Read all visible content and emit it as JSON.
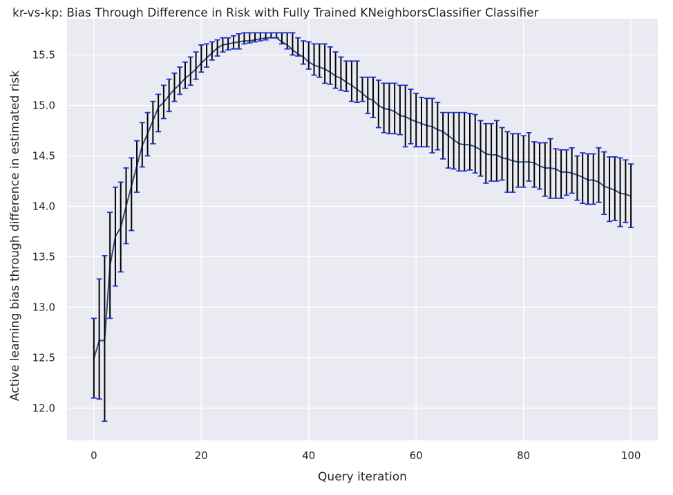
{
  "chart_data": {
    "type": "line",
    "title": "kr-vs-kp: Bias Through Difference in Risk with Fully Trained KNeighborsClassifier Classifier",
    "xlabel": "Query iteration",
    "ylabel": "Active learning bias through difference in estimated risk",
    "xlim": [
      -5,
      105
    ],
    "ylim": [
      11.68,
      15.86
    ],
    "x_ticks": [
      0,
      20,
      40,
      60,
      80,
      100
    ],
    "y_ticks": [
      12.0,
      12.5,
      13.0,
      13.5,
      14.0,
      14.5,
      15.0,
      15.5
    ],
    "grid": true,
    "x": [
      0,
      1,
      2,
      3,
      4,
      5,
      6,
      7,
      8,
      9,
      10,
      11,
      12,
      13,
      14,
      15,
      16,
      17,
      18,
      19,
      20,
      21,
      22,
      23,
      24,
      25,
      26,
      27,
      28,
      29,
      30,
      31,
      32,
      33,
      34,
      35,
      36,
      37,
      38,
      39,
      40,
      41,
      42,
      43,
      44,
      45,
      46,
      47,
      48,
      49,
      50,
      51,
      52,
      53,
      54,
      55,
      56,
      57,
      58,
      59,
      60,
      61,
      62,
      63,
      64,
      65,
      66,
      67,
      68,
      69,
      70,
      71,
      72,
      73,
      74,
      75,
      76,
      77,
      78,
      79,
      80,
      81,
      82,
      83,
      84,
      85,
      86,
      87,
      88,
      89,
      90,
      91,
      92,
      93,
      94,
      95,
      96,
      97,
      98,
      99,
      100
    ],
    "series": [
      {
        "values": [
          12.49,
          12.67,
          12.67,
          13.41,
          13.7,
          13.79,
          14.0,
          14.2,
          14.4,
          14.6,
          14.72,
          14.85,
          14.98,
          15.03,
          15.1,
          15.16,
          15.21,
          15.27,
          15.31,
          15.36,
          15.42,
          15.47,
          15.52,
          15.57,
          15.6,
          15.61,
          15.62,
          15.63,
          15.64,
          15.64,
          15.65,
          15.66,
          15.67,
          15.67,
          15.67,
          15.63,
          15.6,
          15.55,
          15.51,
          15.48,
          15.43,
          15.4,
          15.38,
          15.36,
          15.33,
          15.29,
          15.27,
          15.23,
          15.2,
          15.16,
          15.12,
          15.07,
          15.05,
          15.0,
          14.97,
          14.96,
          14.94,
          14.9,
          14.89,
          14.86,
          14.84,
          14.82,
          14.8,
          14.79,
          14.76,
          14.74,
          14.7,
          14.66,
          14.62,
          14.61,
          14.61,
          14.59,
          14.56,
          14.52,
          14.51,
          14.51,
          14.48,
          14.47,
          14.45,
          14.44,
          14.44,
          14.44,
          14.43,
          14.4,
          14.38,
          14.38,
          14.37,
          14.34,
          14.34,
          14.33,
          14.31,
          14.29,
          14.26,
          14.26,
          14.24,
          14.2,
          14.18,
          14.16,
          14.13,
          14.12,
          14.1
        ],
        "lower": [
          12.1,
          12.09,
          11.87,
          12.89,
          13.21,
          13.35,
          13.63,
          13.76,
          14.14,
          14.39,
          14.5,
          14.62,
          14.74,
          14.87,
          14.94,
          15.04,
          15.11,
          15.17,
          15.2,
          15.26,
          15.33,
          15.38,
          15.45,
          15.49,
          15.53,
          15.55,
          15.56,
          15.56,
          15.61,
          15.62,
          15.63,
          15.64,
          15.65,
          15.67,
          15.67,
          15.61,
          15.56,
          15.5,
          15.49,
          15.41,
          15.36,
          15.3,
          15.28,
          15.22,
          15.21,
          15.17,
          15.15,
          15.14,
          15.04,
          15.03,
          15.04,
          14.92,
          14.88,
          14.78,
          14.73,
          14.72,
          14.72,
          14.71,
          14.59,
          14.62,
          14.59,
          14.59,
          14.59,
          14.53,
          14.56,
          14.47,
          14.38,
          14.37,
          14.35,
          14.35,
          14.36,
          14.33,
          14.3,
          14.23,
          14.25,
          14.25,
          14.26,
          14.14,
          14.14,
          14.19,
          14.19,
          14.25,
          14.19,
          14.17,
          14.1,
          14.08,
          14.08,
          14.08,
          14.11,
          14.13,
          14.06,
          14.03,
          14.02,
          14.02,
          14.04,
          13.92,
          13.85,
          13.86,
          13.8,
          13.84,
          13.79
        ],
        "upper": [
          12.89,
          13.28,
          13.51,
          13.94,
          14.19,
          14.24,
          14.38,
          14.48,
          14.65,
          14.83,
          14.93,
          15.04,
          15.11,
          15.2,
          15.26,
          15.32,
          15.38,
          15.43,
          15.48,
          15.53,
          15.6,
          15.61,
          15.63,
          15.65,
          15.67,
          15.67,
          15.69,
          15.71,
          15.72,
          15.72,
          15.72,
          15.72,
          15.72,
          15.72,
          15.72,
          15.72,
          15.72,
          15.72,
          15.67,
          15.64,
          15.63,
          15.61,
          15.61,
          15.61,
          15.58,
          15.53,
          15.48,
          15.44,
          15.44,
          15.44,
          15.28,
          15.28,
          15.28,
          15.25,
          15.22,
          15.22,
          15.22,
          15.2,
          15.2,
          15.16,
          15.12,
          15.08,
          15.07,
          15.07,
          15.03,
          14.93,
          14.93,
          14.93,
          14.93,
          14.93,
          14.92,
          14.91,
          14.85,
          14.82,
          14.82,
          14.85,
          14.78,
          14.74,
          14.72,
          14.72,
          14.7,
          14.73,
          14.64,
          14.63,
          14.63,
          14.67,
          14.57,
          14.56,
          14.56,
          14.58,
          14.5,
          14.53,
          14.52,
          14.52,
          14.58,
          14.54,
          14.49,
          14.49,
          14.48,
          14.46,
          14.42
        ]
      }
    ],
    "line_color": "#2f4b7c",
    "errorbar_color": "#000000",
    "cap_color": "#1f2fd6",
    "plot_bg": "#eaeaf2",
    "grid_color": "#ffffff"
  }
}
